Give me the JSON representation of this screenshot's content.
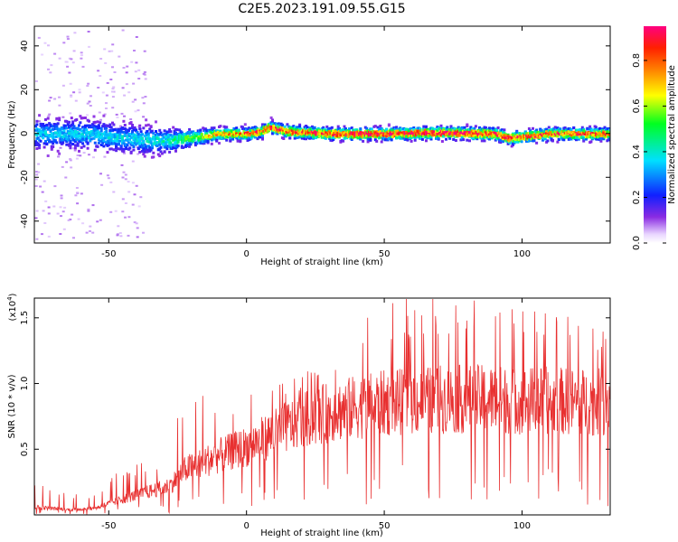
{
  "chart_data": [
    {
      "type": "heatmap",
      "title": "C2E5.2023.191.09.55.G15",
      "xlabel": "Height of straight line (km)",
      "ylabel": "Frequency (Hz)",
      "xlim": [
        -77,
        132
      ],
      "ylim": [
        -50,
        49
      ],
      "xticks": [
        -50,
        0,
        50,
        100
      ],
      "yticks": [
        -40,
        -20,
        0,
        20,
        40
      ],
      "xtick_labels": [
        "-50",
        "0",
        "50",
        "100"
      ],
      "ytick_labels": [
        "-40",
        "-20",
        "0",
        "20",
        "40"
      ],
      "colorbar": {
        "label": "Normalized spectral amplitude",
        "range": [
          0.0,
          0.95
        ],
        "ticks": [
          0.0,
          0.2,
          0.4,
          0.6,
          0.8
        ],
        "tick_labels": [
          "0.0",
          "0.2",
          "0.4",
          "0.6",
          "0.8"
        ],
        "colormap": "rainbow (white-violet-blue-cyan-green-yellow-orange-red-magenta)"
      },
      "ridge_center_hz": {
        "x": [
          -77,
          -60,
          -45,
          -35,
          -28,
          -22,
          -15,
          -10,
          0,
          5,
          8,
          15,
          30,
          50,
          70,
          90,
          95,
          110,
          132
        ],
        "y": [
          0,
          0,
          -2,
          -3,
          -3,
          -2,
          -1,
          0,
          0,
          1,
          3,
          1,
          0,
          0,
          0.5,
          0,
          -2,
          0,
          0
        ]
      },
      "ridge_halfwidth_hz": {
        "x": [
          -77,
          -50,
          -30,
          -20,
          -10,
          0,
          50,
          100,
          132
        ],
        "y": [
          7,
          7,
          6,
          4,
          3,
          3,
          3,
          3,
          3
        ]
      },
      "ridge_peak_amplitude": {
        "x": [
          -77,
          -50,
          -30,
          -20,
          -10,
          0,
          20,
          50,
          80,
          100,
          132
        ],
        "y": [
          0.35,
          0.35,
          0.4,
          0.55,
          0.7,
          0.8,
          0.85,
          0.9,
          0.9,
          0.85,
          0.8
        ]
      },
      "grid": false
    },
    {
      "type": "line",
      "xlabel": "Height of straight line (km)",
      "ylabel": "SNR (10 * v/v)",
      "y_multiplier_label": "(x10",
      "y_multiplier_exponent": "4",
      "y_multiplier_close": ")",
      "xlim": [
        -77,
        132
      ],
      "ylim": [
        0,
        1.65
      ],
      "xticks": [
        -50,
        0,
        50,
        100
      ],
      "yticks": [
        0.5,
        1.0,
        1.5
      ],
      "xtick_labels": [
        "-50",
        "0",
        "50",
        "100"
      ],
      "ytick_labels": [
        "0.5",
        "1.0",
        "1.5"
      ],
      "series_color": "#e83030",
      "envelope_mean": {
        "x": [
          -77,
          -65,
          -55,
          -45,
          -35,
          -28,
          -22,
          -10,
          0,
          10,
          20,
          30,
          40,
          50,
          60,
          70,
          80,
          90,
          100,
          110,
          120,
          132
        ],
        "y": [
          0.06,
          0.04,
          0.05,
          0.12,
          0.18,
          0.22,
          0.35,
          0.45,
          0.52,
          0.62,
          0.72,
          0.78,
          0.82,
          0.85,
          0.86,
          0.88,
          0.88,
          0.88,
          0.87,
          0.87,
          0.86,
          0.86
        ]
      },
      "envelope_max": {
        "x": [
          -77,
          -60,
          -45,
          -30,
          -23,
          0,
          20,
          35,
          50,
          80,
          95,
          132
        ],
        "y": [
          0.3,
          0.14,
          0.35,
          0.45,
          0.9,
          0.95,
          1.05,
          1.35,
          1.65,
          1.65,
          1.65,
          1.45
        ]
      },
      "grid": false
    }
  ]
}
